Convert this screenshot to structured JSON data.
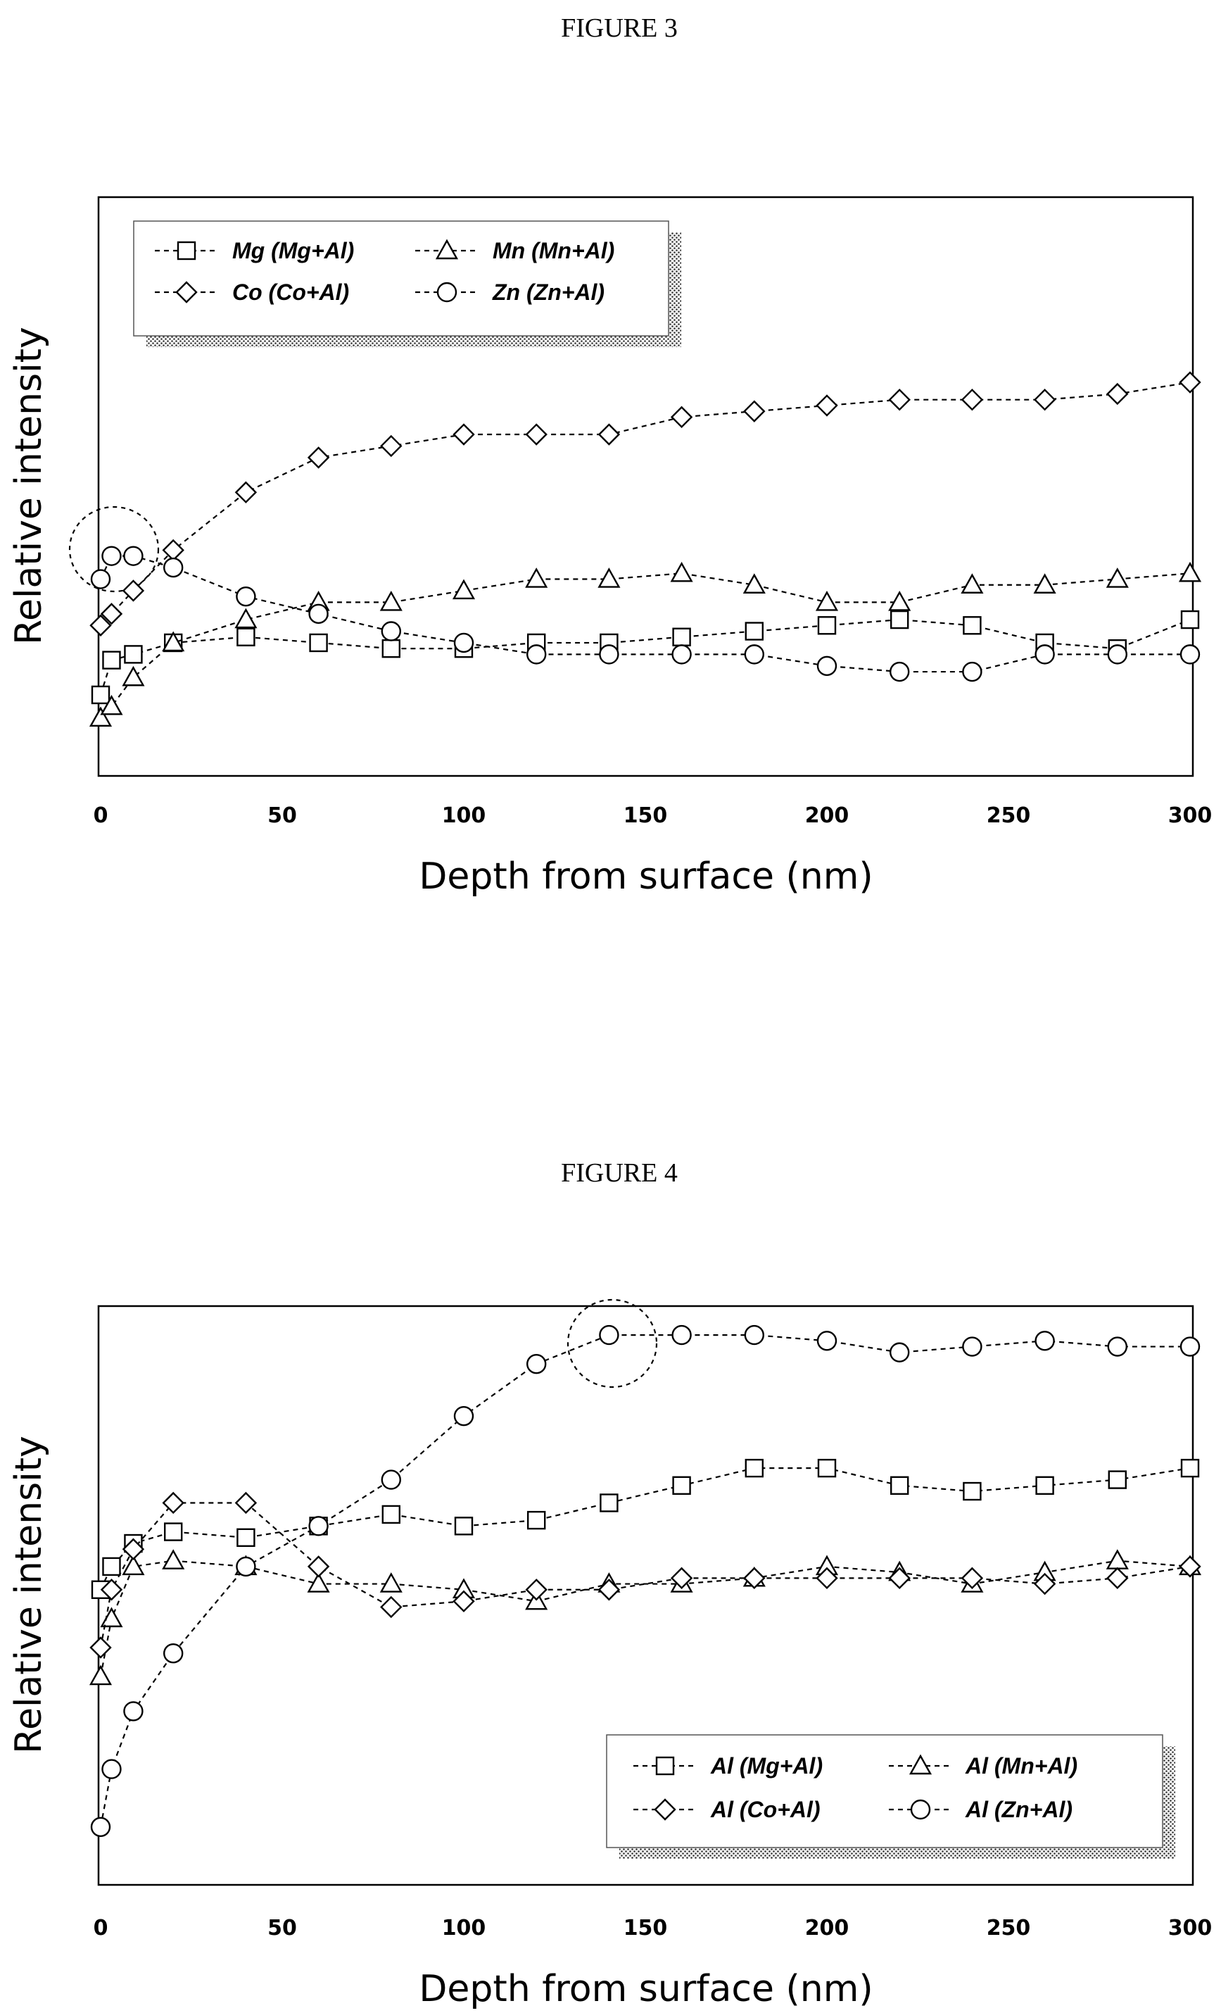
{
  "chart_data": [
    {
      "type": "line",
      "title": "FIGURE 3",
      "xlabel": "Depth from surface (nm)",
      "ylabel": "Relative intensity",
      "xlim": [
        0,
        300
      ],
      "ylim": [
        0,
        1
      ],
      "xticks": [
        0,
        50,
        100,
        150,
        200,
        250,
        300
      ],
      "grid": false,
      "legend": "top-left",
      "series": [
        {
          "name": "Mg (Mg+Al)",
          "marker": "square",
          "x": [
            0,
            3,
            9,
            20,
            40,
            60,
            80,
            100,
            120,
            140,
            160,
            180,
            200,
            220,
            240,
            260,
            280,
            300
          ],
          "y": [
            0.14,
            0.2,
            0.21,
            0.23,
            0.24,
            0.23,
            0.22,
            0.22,
            0.23,
            0.23,
            0.24,
            0.25,
            0.26,
            0.27,
            0.26,
            0.23,
            0.22,
            0.27
          ]
        },
        {
          "name": "Mn (Mn+Al)",
          "marker": "triangle",
          "x": [
            0,
            3,
            9,
            20,
            40,
            60,
            80,
            100,
            120,
            140,
            160,
            180,
            200,
            220,
            240,
            260,
            280,
            300
          ],
          "y": [
            0.1,
            0.12,
            0.17,
            0.23,
            0.27,
            0.3,
            0.3,
            0.32,
            0.34,
            0.34,
            0.35,
            0.33,
            0.3,
            0.3,
            0.33,
            0.33,
            0.34,
            0.35
          ]
        },
        {
          "name": "Co (Co+Al)",
          "marker": "diamond",
          "x": [
            0,
            3,
            9,
            20,
            40,
            60,
            80,
            100,
            120,
            140,
            160,
            180,
            200,
            220,
            240,
            260,
            280,
            300
          ],
          "y": [
            0.26,
            0.28,
            0.32,
            0.39,
            0.49,
            0.55,
            0.57,
            0.59,
            0.59,
            0.59,
            0.62,
            0.63,
            0.64,
            0.65,
            0.65,
            0.65,
            0.66,
            0.68
          ]
        },
        {
          "name": "Zn (Zn+Al)",
          "marker": "circle",
          "x": [
            0,
            3,
            9,
            20,
            40,
            60,
            80,
            100,
            120,
            140,
            160,
            180,
            200,
            220,
            240,
            260,
            280,
            300
          ],
          "y": [
            0.34,
            0.38,
            0.38,
            0.36,
            0.31,
            0.28,
            0.25,
            0.23,
            0.21,
            0.21,
            0.21,
            0.21,
            0.19,
            0.18,
            0.18,
            0.21,
            0.21,
            0.21
          ]
        }
      ]
    },
    {
      "type": "line",
      "title": "FIGURE 4",
      "xlabel": "Depth from surface (nm)",
      "ylabel": "Relative intensity",
      "xlim": [
        0,
        300
      ],
      "ylim": [
        0,
        1
      ],
      "xticks": [
        0,
        50,
        100,
        150,
        200,
        250,
        300
      ],
      "grid": false,
      "legend": "bottom-right",
      "series": [
        {
          "name": "Al (Mg+Al)",
          "marker": "square",
          "x": [
            0,
            3,
            9,
            20,
            40,
            60,
            80,
            100,
            120,
            140,
            160,
            180,
            200,
            220,
            240,
            260,
            280,
            300
          ],
          "y": [
            0.51,
            0.55,
            0.59,
            0.61,
            0.6,
            0.62,
            0.64,
            0.62,
            0.63,
            0.66,
            0.69,
            0.72,
            0.72,
            0.69,
            0.68,
            0.69,
            0.7,
            0.72
          ]
        },
        {
          "name": "Al (Mn+Al)",
          "marker": "triangle",
          "x": [
            0,
            3,
            9,
            20,
            40,
            60,
            80,
            100,
            120,
            140,
            160,
            180,
            200,
            220,
            240,
            260,
            280,
            300
          ],
          "y": [
            0.36,
            0.46,
            0.55,
            0.56,
            0.55,
            0.52,
            0.52,
            0.51,
            0.49,
            0.52,
            0.52,
            0.53,
            0.55,
            0.54,
            0.52,
            0.54,
            0.56,
            0.55
          ]
        },
        {
          "name": "Al (Co+Al)",
          "marker": "diamond",
          "x": [
            0,
            3,
            9,
            20,
            40,
            60,
            80,
            100,
            120,
            140,
            160,
            180,
            200,
            220,
            240,
            260,
            280,
            300
          ],
          "y": [
            0.41,
            0.51,
            0.58,
            0.66,
            0.66,
            0.55,
            0.48,
            0.49,
            0.51,
            0.51,
            0.53,
            0.53,
            0.53,
            0.53,
            0.53,
            0.52,
            0.53,
            0.55
          ]
        },
        {
          "name": "Al (Zn+Al)",
          "marker": "circle",
          "x": [
            0,
            3,
            9,
            20,
            40,
            60,
            80,
            100,
            120,
            140,
            160,
            180,
            200,
            220,
            240,
            260,
            280,
            300
          ],
          "y": [
            0.1,
            0.2,
            0.3,
            0.4,
            0.55,
            0.62,
            0.7,
            0.81,
            0.9,
            0.95,
            0.95,
            0.95,
            0.94,
            0.92,
            0.93,
            0.94,
            0.93,
            0.93
          ]
        }
      ]
    }
  ]
}
